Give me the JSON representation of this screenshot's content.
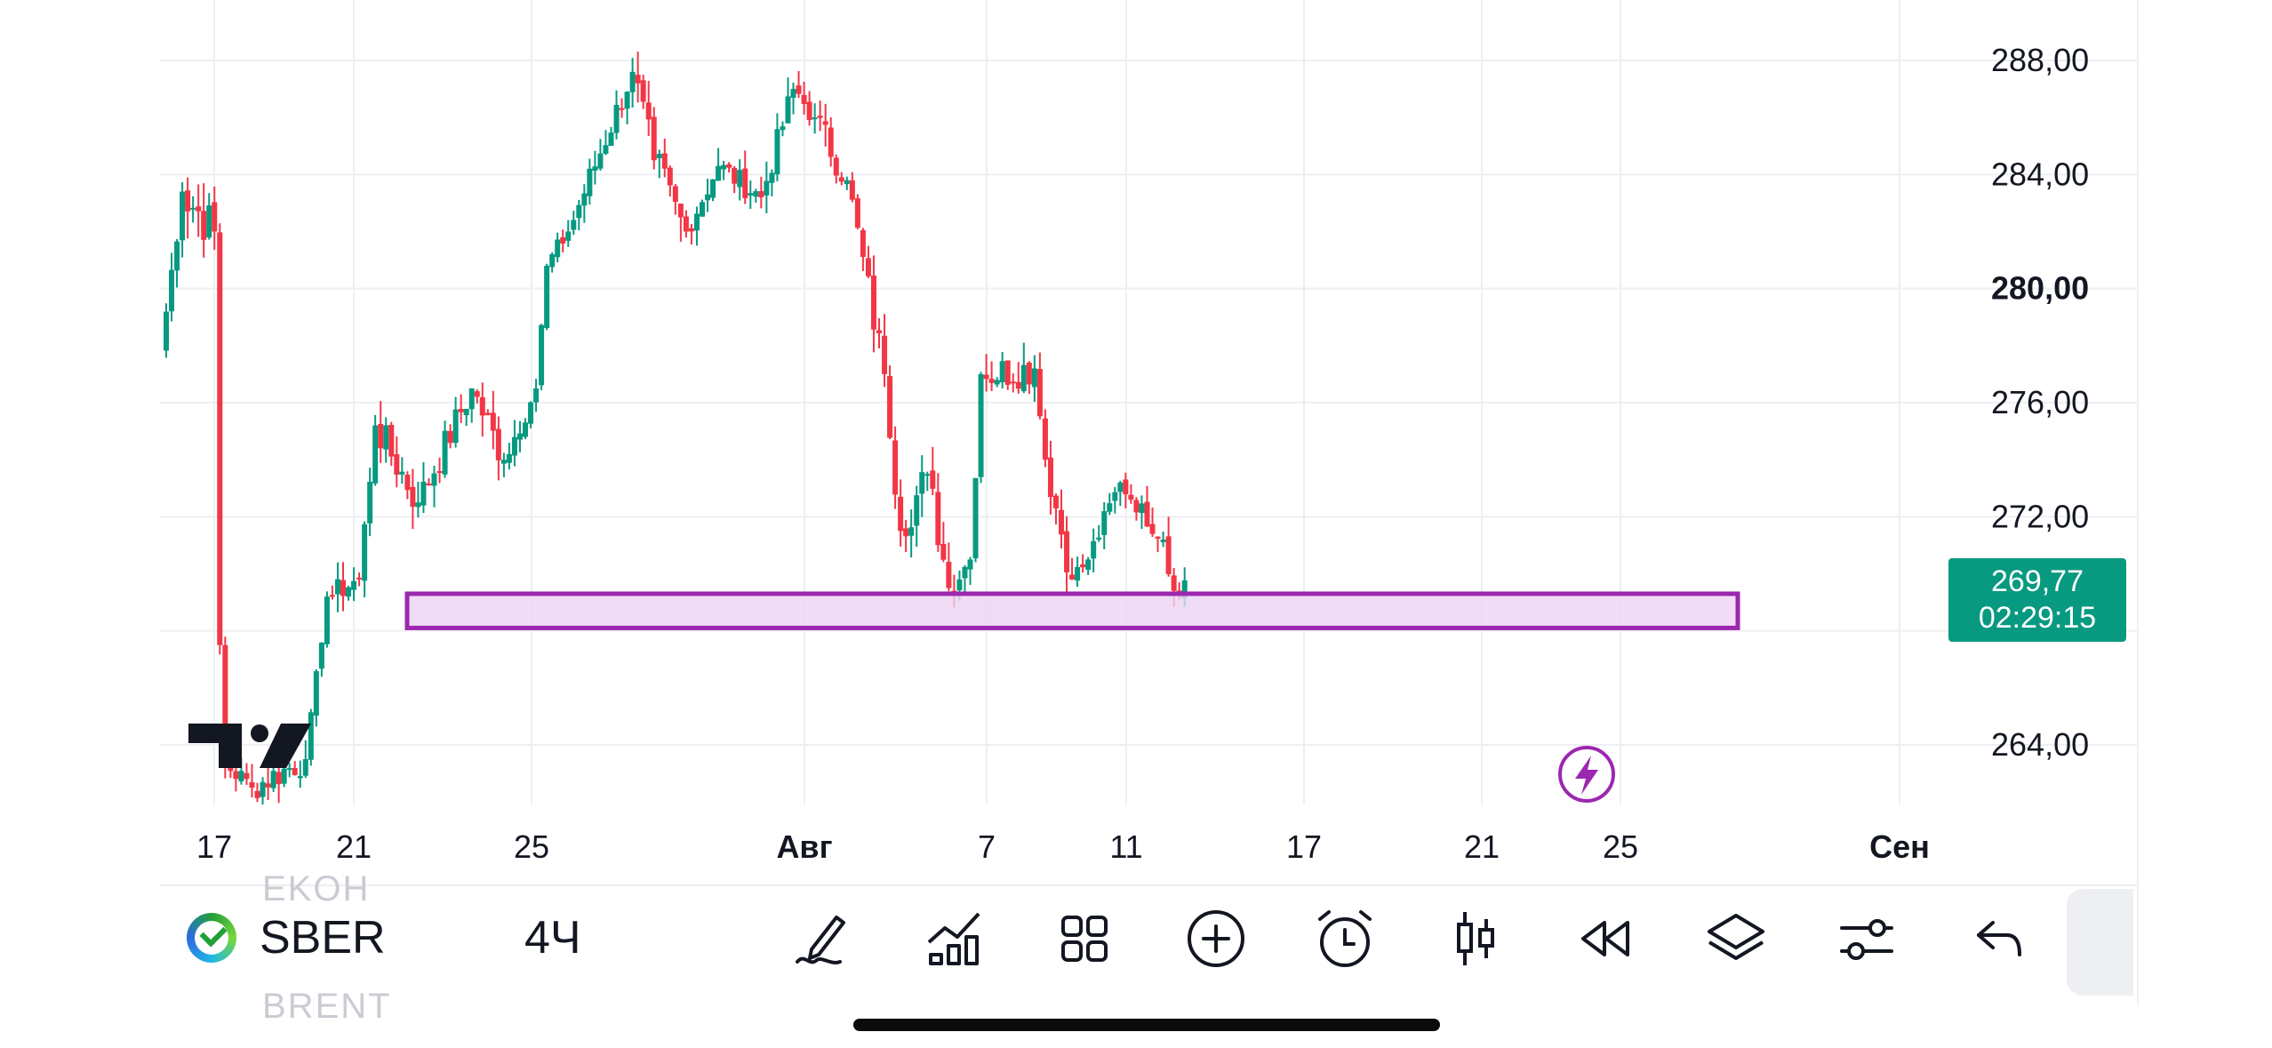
{
  "chart_data": {
    "type": "candlestick",
    "symbol": "SBER",
    "interval": "4Ч",
    "price_axis": {
      "ticks": [
        "288,00",
        "284,00",
        "280,00",
        "276,00",
        "272,00",
        "264,00"
      ],
      "tick_values": [
        288,
        284,
        280,
        276,
        272,
        264
      ],
      "highlighted_tick": "280,00",
      "range": [
        261.9,
        290.2
      ]
    },
    "time_axis": {
      "labels": [
        "17",
        "21",
        "25",
        "Авг",
        "7",
        "11",
        "17",
        "21",
        "25",
        "Сен"
      ],
      "bold_labels": [
        "Авг",
        "Сен"
      ]
    },
    "last_price": {
      "value": "269,77",
      "countdown": "02:29:15",
      "color": "#089981"
    },
    "support_zone": {
      "price_low": 268.1,
      "price_high": 269.3,
      "fill": "#ecd3f2",
      "stroke": "#9c27b0"
    },
    "colors": {
      "up": "#089981",
      "down": "#f23645",
      "grid": "#eeeff2"
    },
    "grid": true,
    "segments": [
      {
        "from": 277.8,
        "to": 283.4,
        "steps": 4,
        "noise": 0.9
      },
      {
        "from": 283.4,
        "to": 282.0,
        "steps": 6,
        "noise": 1.8
      },
      {
        "from": 281.8,
        "to": 267.5,
        "steps": 1,
        "noise": 0.2
      },
      {
        "from": 263.5,
        "to": 262.5,
        "steps": 6,
        "noise": 0.9
      },
      {
        "from": 262.5,
        "to": 263.5,
        "steps": 10,
        "noise": 1.1
      },
      {
        "from": 263.5,
        "to": 269.2,
        "steps": 4,
        "noise": 0.5
      },
      {
        "from": 269.2,
        "to": 269.8,
        "steps": 6,
        "noise": 0.9
      },
      {
        "from": 269.8,
        "to": 275.2,
        "steps": 3,
        "noise": 0.8
      },
      {
        "from": 275.2,
        "to": 272.5,
        "steps": 8,
        "noise": 1.4
      },
      {
        "from": 272.5,
        "to": 276.5,
        "steps": 10,
        "noise": 1.2
      },
      {
        "from": 276.5,
        "to": 274.0,
        "steps": 6,
        "noise": 1.2
      },
      {
        "from": 274.0,
        "to": 276.5,
        "steps": 6,
        "noise": 0.8
      },
      {
        "from": 276.5,
        "to": 280.8,
        "steps": 2,
        "noise": 0.4
      },
      {
        "from": 280.8,
        "to": 282.0,
        "steps": 4,
        "noise": 0.7
      },
      {
        "from": 282.0,
        "to": 287.6,
        "steps": 12,
        "noise": 1.0
      },
      {
        "from": 287.6,
        "to": 284.5,
        "steps": 4,
        "noise": 1.4
      },
      {
        "from": 284.5,
        "to": 282.0,
        "steps": 6,
        "noise": 1.5
      },
      {
        "from": 282.0,
        "to": 284.3,
        "steps": 6,
        "noise": 0.8
      },
      {
        "from": 284.3,
        "to": 283.2,
        "steps": 8,
        "noise": 0.9
      },
      {
        "from": 283.2,
        "to": 287.0,
        "steps": 6,
        "noise": 1.0
      },
      {
        "from": 287.0,
        "to": 286.0,
        "steps": 4,
        "noise": 0.9
      },
      {
        "from": 286.0,
        "to": 283.8,
        "steps": 6,
        "noise": 1.2
      },
      {
        "from": 283.8,
        "to": 277.0,
        "steps": 7,
        "noise": 1.4
      },
      {
        "from": 277.0,
        "to": 271.5,
        "steps": 3,
        "noise": 1.2
      },
      {
        "from": 271.5,
        "to": 273.5,
        "steps": 5,
        "noise": 1.4
      },
      {
        "from": 273.5,
        "to": 269.5,
        "steps": 4,
        "noise": 1.4
      },
      {
        "from": 269.5,
        "to": 270.5,
        "steps": 4,
        "noise": 0.9
      },
      {
        "from": 270.5,
        "to": 277.0,
        "steps": 2,
        "noise": 0.9
      },
      {
        "from": 277.0,
        "to": 277.2,
        "steps": 10,
        "noise": 1.3
      },
      {
        "from": 277.2,
        "to": 274.0,
        "steps": 2,
        "noise": 0.8
      },
      {
        "from": 274.0,
        "to": 269.8,
        "steps": 5,
        "noise": 1.2
      },
      {
        "from": 269.8,
        "to": 270.5,
        "steps": 3,
        "noise": 0.8
      },
      {
        "from": 270.5,
        "to": 273.2,
        "steps": 6,
        "noise": 0.8
      },
      {
        "from": 273.2,
        "to": 271.2,
        "steps": 8,
        "noise": 0.7
      },
      {
        "from": 271.2,
        "to": 269.4,
        "steps": 2,
        "noise": 1.6
      },
      {
        "from": 269.4,
        "to": 269.77,
        "steps": 2,
        "noise": 0.7
      }
    ]
  },
  "toolbar": {
    "symbol_label": "SBER",
    "interval_label": "4Ч",
    "ghost_above": "EKOH",
    "ghost_below": "BRENT",
    "tools": [
      "pencil-icon",
      "indicators-icon",
      "grid-apps-icon",
      "add-circle-icon",
      "alarm-icon",
      "candles-icon",
      "replay-icon",
      "layers-icon",
      "settings-sliders-icon",
      "undo-icon"
    ]
  }
}
